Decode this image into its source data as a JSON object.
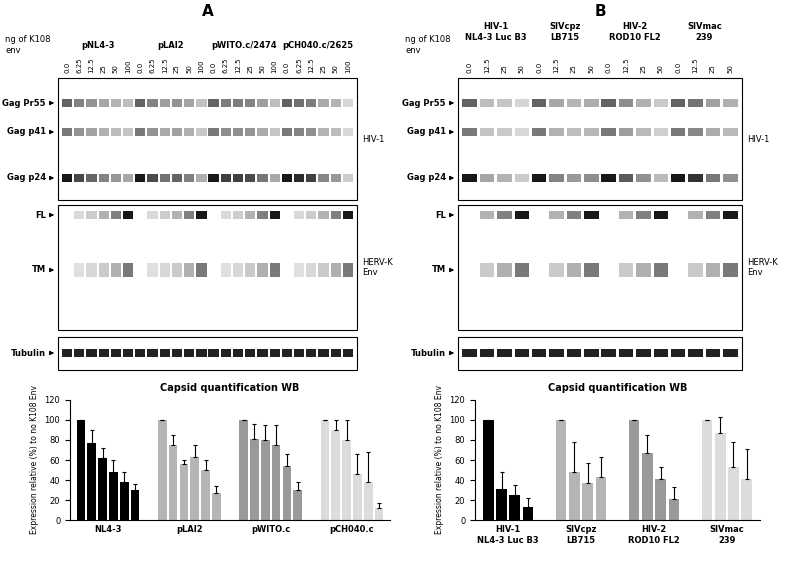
{
  "blots": [
    {
      "panel": "A",
      "lane_header": "ng of K108\nenv",
      "samples": [
        {
          "name": "pNL4-3",
          "lanes": [
            "0.0",
            "6.25",
            "12.5",
            "25",
            "50",
            "100"
          ]
        },
        {
          "name": "pLAI2",
          "lanes": [
            "0.0",
            "6.25",
            "12.5",
            "25",
            "50",
            "100"
          ]
        },
        {
          "name": "pWITO.c/2474",
          "lanes": [
            "0.0",
            "6.25",
            "12.5",
            "25",
            "50",
            "100"
          ]
        },
        {
          "name": "pCH040.c/2625",
          "lanes": [
            "0.0",
            "6.25",
            "12.5",
            "25",
            "50",
            "100"
          ]
        }
      ],
      "sections": [
        {
          "name": "HIV-1",
          "bands": [
            "Gag Pr55",
            "Gag p41",
            "Gag p24"
          ]
        },
        {
          "name": "HERV-K\nEnv",
          "bands": [
            "FL",
            "TM"
          ]
        },
        {
          "bands": [
            "Tubulin"
          ]
        }
      ]
    },
    {
      "panel": "B",
      "lane_header": "ng of K108\nenv",
      "samples": [
        {
          "name": "HIV-1\nNL4-3 Luc B3",
          "lanes": [
            "0.0",
            "12.5",
            "25",
            "50"
          ]
        },
        {
          "name": "SIVcpz\nLB715",
          "lanes": [
            "0.0",
            "12.5",
            "25",
            "50"
          ]
        },
        {
          "name": "HIV-2\nROD10 FL2",
          "lanes": [
            "0.0",
            "12.5",
            "25",
            "50"
          ]
        },
        {
          "name": "SIVmac\n239",
          "lanes": [
            "0.0",
            "12.5",
            "25",
            "50"
          ]
        }
      ],
      "sections": [
        {
          "name": "HIV-1",
          "bands": [
            "Gag Pr55",
            "Gag p41",
            "Gag p24"
          ]
        },
        {
          "name": "HERV-K\nEnv",
          "bands": [
            "FL",
            "TM"
          ]
        },
        {
          "bands": [
            "Tubulin"
          ]
        }
      ]
    }
  ],
  "chart_data": [
    {
      "type": "bar",
      "title": "Capsid quantification WB",
      "y_label": "Expression relative (%) to no K108 Env",
      "ylim": [
        0,
        120
      ],
      "yticks": [
        0,
        20,
        40,
        60,
        80,
        100,
        120
      ],
      "categories": [
        "NL4-3",
        "pLAI2",
        "pWITO.c",
        "pCH040.c"
      ],
      "groups": [
        {
          "color": "#000000",
          "values": [
            100,
            77,
            62,
            48,
            38,
            30
          ],
          "errors": [
            0,
            13,
            10,
            12,
            10,
            6
          ]
        },
        {
          "color": "#b5b5b5",
          "values": [
            100,
            75,
            56,
            63,
            50,
            27
          ],
          "errors": [
            0,
            10,
            4,
            12,
            10,
            7
          ]
        },
        {
          "color": "#9a9a9a",
          "values": [
            100,
            81,
            80,
            75,
            54,
            30
          ],
          "errors": [
            0,
            15,
            15,
            20,
            12,
            8
          ]
        },
        {
          "color": "#dcdcdc",
          "values": [
            100,
            90,
            80,
            46,
            38,
            12
          ],
          "errors": [
            0,
            10,
            20,
            20,
            30,
            5
          ]
        }
      ]
    },
    {
      "type": "bar",
      "title": "Capsid quantification WB",
      "y_label": "Expression relative (%) to no K108 Env",
      "ylim": [
        0,
        120
      ],
      "yticks": [
        0,
        20,
        40,
        60,
        80,
        100,
        120
      ],
      "categories": [
        "HIV-1\nNL4-3 Luc B3",
        "SIVcpz\nLB715",
        "HIV-2\nROD10 FL2",
        "SIVmac\n239"
      ],
      "groups": [
        {
          "color": "#000000",
          "values": [
            100,
            31,
            25,
            13
          ],
          "errors": [
            0,
            17,
            10,
            9
          ]
        },
        {
          "color": "#b5b5b5",
          "values": [
            100,
            48,
            37,
            43
          ],
          "errors": [
            0,
            30,
            20,
            20
          ]
        },
        {
          "color": "#9a9a9a",
          "values": [
            100,
            67,
            41,
            21
          ],
          "errors": [
            0,
            18,
            12,
            12
          ]
        },
        {
          "color": "#dcdcdc",
          "values": [
            100,
            87,
            53,
            41
          ],
          "errors": [
            0,
            16,
            25,
            30
          ]
        }
      ]
    }
  ]
}
